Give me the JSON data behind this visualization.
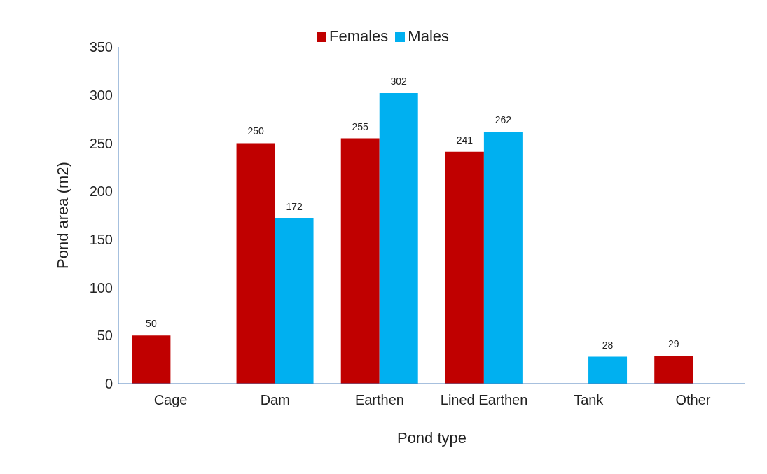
{
  "chart_data": {
    "type": "bar",
    "xlabel": "Pond type",
    "ylabel": "Pond area (m2)",
    "categories": [
      "Cage",
      "Dam",
      "Earthen",
      "Lined Earthen",
      "Tank",
      "Other"
    ],
    "series": [
      {
        "name": "Females",
        "color": "#c00000",
        "values": [
          50,
          250,
          255,
          241,
          null,
          29
        ]
      },
      {
        "name": "Males",
        "color": "#00b0f0",
        "values": [
          null,
          172,
          302,
          262,
          28,
          null
        ]
      }
    ],
    "ylim": [
      0,
      350
    ],
    "yticks": [
      0,
      50,
      100,
      150,
      200,
      250,
      300,
      350
    ],
    "grid": false,
    "legend": "top",
    "data_labels": true
  }
}
